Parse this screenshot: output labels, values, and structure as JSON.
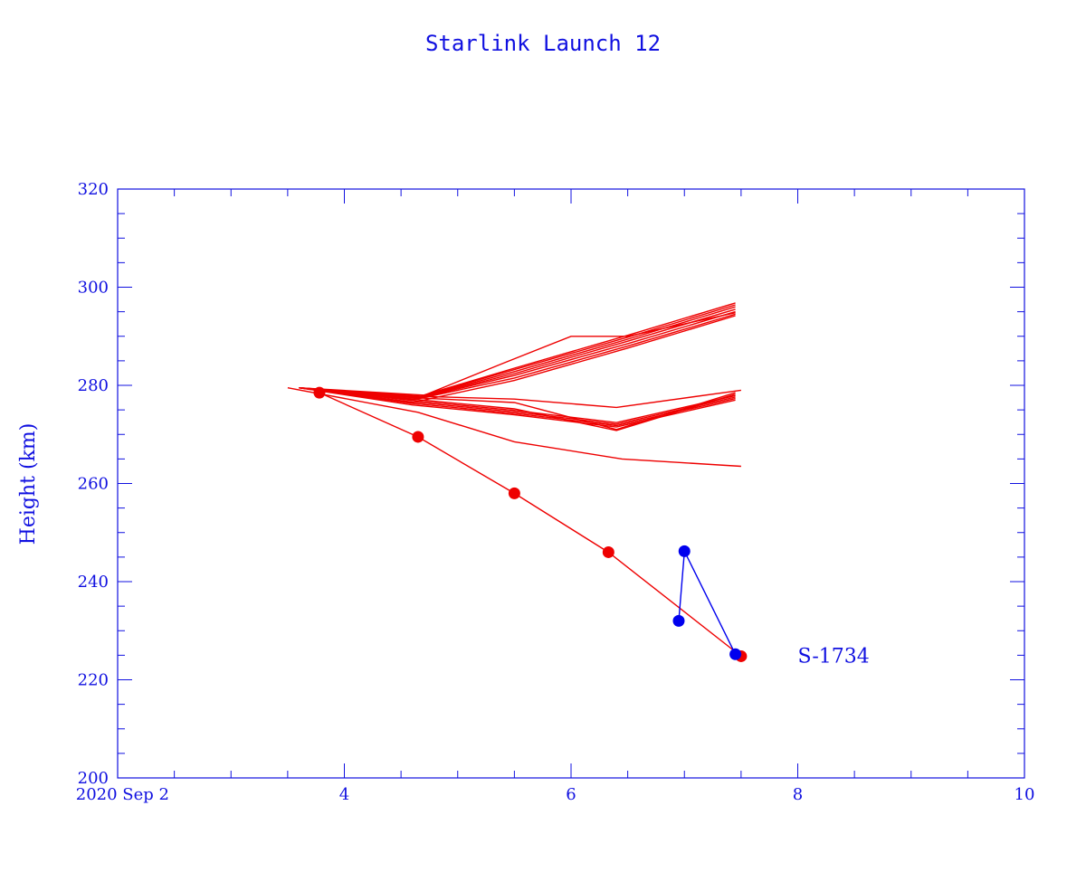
{
  "chart_data": {
    "type": "line",
    "title": "Starlink Launch 12",
    "ylabel": "Height (km)",
    "xlabel": "",
    "x_axis": {
      "unit": "day of September 2020",
      "range": [
        2,
        10
      ],
      "tick_labels": [
        {
          "x": 2,
          "label": "2020 Sep  2"
        },
        {
          "x": 4,
          "label": "4"
        },
        {
          "x": 6,
          "label": "6"
        },
        {
          "x": 8,
          "label": "8"
        },
        {
          "x": 10,
          "label": "10"
        }
      ],
      "minor_step": 0.5
    },
    "y_axis": {
      "range": [
        200,
        320
      ],
      "tick_labels": [
        {
          "y": 200,
          "label": "200"
        },
        {
          "y": 220,
          "label": "220"
        },
        {
          "y": 240,
          "label": "240"
        },
        {
          "y": 260,
          "label": "260"
        },
        {
          "y": 280,
          "label": "280"
        },
        {
          "y": 300,
          "label": "300"
        },
        {
          "y": 320,
          "label": "320"
        }
      ],
      "minor_step": 5
    },
    "grid": false,
    "annotation": {
      "text": "S-1734",
      "x": 8.0,
      "y": 225
    },
    "colors": {
      "axis": "#1010e0",
      "red": "#ee0000",
      "blue": "#0000ee"
    },
    "series": [
      {
        "color": "red",
        "marker": "none",
        "points": [
          [
            3.6,
            279.5
          ],
          [
            4.6,
            277.0
          ],
          [
            5.5,
            281.5
          ],
          [
            6.5,
            288.0
          ],
          [
            7.45,
            294.5
          ]
        ]
      },
      {
        "color": "red",
        "marker": "none",
        "points": [
          [
            3.6,
            279.5
          ],
          [
            4.62,
            277.2
          ],
          [
            5.5,
            282.0
          ],
          [
            6.5,
            288.5
          ],
          [
            7.45,
            295.0
          ]
        ]
      },
      {
        "color": "red",
        "marker": "none",
        "points": [
          [
            3.6,
            279.5
          ],
          [
            4.64,
            277.4
          ],
          [
            5.5,
            282.4
          ],
          [
            6.5,
            289.0
          ],
          [
            7.45,
            295.5
          ]
        ]
      },
      {
        "color": "red",
        "marker": "none",
        "points": [
          [
            3.6,
            279.5
          ],
          [
            4.66,
            277.6
          ],
          [
            5.5,
            282.8
          ],
          [
            6.5,
            289.4
          ],
          [
            7.45,
            296.0
          ]
        ]
      },
      {
        "color": "red",
        "marker": "none",
        "points": [
          [
            3.6,
            279.5
          ],
          [
            4.68,
            277.8
          ],
          [
            5.5,
            283.2
          ],
          [
            6.5,
            289.8
          ],
          [
            7.45,
            296.4
          ]
        ]
      },
      {
        "color": "red",
        "marker": "none",
        "points": [
          [
            3.6,
            279.5
          ],
          [
            4.7,
            278.0
          ],
          [
            5.5,
            283.5
          ],
          [
            6.5,
            290.2
          ],
          [
            7.45,
            296.8
          ]
        ]
      },
      {
        "color": "red",
        "marker": "none",
        "points": [
          [
            3.6,
            279.5
          ],
          [
            4.6,
            276.5
          ],
          [
            5.5,
            281.0
          ],
          [
            6.5,
            287.6
          ],
          [
            7.45,
            294.2
          ]
        ]
      },
      {
        "color": "red",
        "marker": "none",
        "points": [
          [
            3.6,
            279.5
          ],
          [
            4.6,
            277.0
          ],
          [
            5.4,
            284.5
          ],
          [
            6.0,
            290.0
          ],
          [
            6.5,
            290.0
          ],
          [
            7.45,
            294.8
          ]
        ]
      },
      {
        "color": "red",
        "marker": "none",
        "points": [
          [
            3.6,
            279.5
          ],
          [
            4.6,
            276.0
          ],
          [
            5.5,
            274.0
          ],
          [
            6.4,
            271.5
          ],
          [
            7.45,
            277.0
          ]
        ]
      },
      {
        "color": "red",
        "marker": "none",
        "points": [
          [
            3.6,
            279.5
          ],
          [
            4.6,
            276.3
          ],
          [
            5.5,
            274.3
          ],
          [
            6.4,
            271.8
          ],
          [
            7.45,
            277.3
          ]
        ]
      },
      {
        "color": "red",
        "marker": "none",
        "points": [
          [
            3.6,
            279.5
          ],
          [
            4.6,
            276.6
          ],
          [
            5.5,
            274.6
          ],
          [
            6.4,
            272.1
          ],
          [
            7.45,
            277.6
          ]
        ]
      },
      {
        "color": "red",
        "marker": "none",
        "points": [
          [
            3.6,
            279.5
          ],
          [
            4.6,
            276.9
          ],
          [
            5.5,
            274.9
          ],
          [
            6.4,
            272.4
          ],
          [
            7.45,
            277.9
          ]
        ]
      },
      {
        "color": "red",
        "marker": "none",
        "points": [
          [
            3.6,
            279.5
          ],
          [
            4.6,
            277.2
          ],
          [
            5.5,
            275.2
          ],
          [
            6.4,
            270.8
          ],
          [
            7.45,
            278.2
          ]
        ]
      },
      {
        "color": "red",
        "marker": "none",
        "points": [
          [
            3.6,
            279.5
          ],
          [
            4.6,
            277.5
          ],
          [
            5.5,
            276.5
          ],
          [
            6.4,
            271.0
          ],
          [
            7.45,
            278.5
          ]
        ]
      },
      {
        "color": "red",
        "marker": "none",
        "points": [
          [
            3.6,
            279.5
          ],
          [
            4.6,
            277.8
          ],
          [
            5.5,
            277.2
          ],
          [
            6.4,
            275.5
          ],
          [
            7.5,
            279.0
          ]
        ]
      },
      {
        "color": "red",
        "marker": "none",
        "points": [
          [
            3.5,
            279.5
          ],
          [
            4.65,
            274.5
          ],
          [
            5.5,
            268.5
          ],
          [
            6.45,
            265.0
          ],
          [
            7.5,
            263.5
          ]
        ]
      },
      {
        "color": "red",
        "marker": "dot",
        "name": "S-1734",
        "points": [
          [
            3.78,
            278.5
          ],
          [
            4.65,
            269.5
          ],
          [
            5.5,
            258.0
          ],
          [
            6.33,
            246.0
          ],
          [
            7.5,
            224.8
          ]
        ]
      },
      {
        "color": "blue",
        "marker": "dot",
        "points": [
          [
            6.95,
            232.0
          ],
          [
            7.0,
            246.2
          ],
          [
            7.45,
            225.2
          ]
        ]
      }
    ]
  }
}
